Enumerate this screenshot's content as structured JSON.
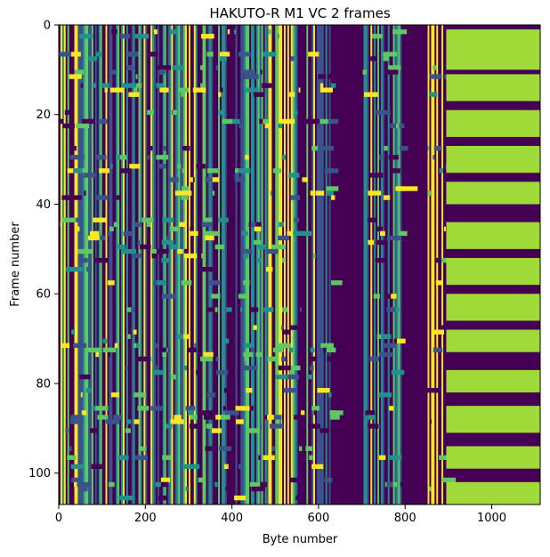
{
  "chart_data": {
    "type": "heatmap",
    "title": "HAKUTO-R M1 VC 2 frames",
    "xlabel": "Byte number",
    "ylabel": "Frame number",
    "xlim": [
      0,
      1112
    ],
    "ylim": [
      107,
      0
    ],
    "x_ticks": [
      "0",
      "200",
      "400",
      "600",
      "800",
      "1000"
    ],
    "y_ticks": [
      "0",
      "20",
      "40",
      "60",
      "80",
      "100"
    ],
    "colormap": "viridis",
    "colors": {
      "low": "#440154",
      "mid_low": "#3b528b",
      "mid": "#21918c",
      "mid_high": "#5ec962",
      "high": "#fde725",
      "fill_region": "#a0da39"
    },
    "regions": {
      "dark_bands_bytes": [
        [
          392,
          404
        ],
        [
          630,
          700
        ],
        [
          800,
          850
        ]
      ],
      "yellow_column_bytes": [
        855,
        890
      ],
      "green_block_bytes": [
        895,
        1112
      ],
      "green_block_frames": [
        [
          1,
          10
        ],
        [
          11,
          17
        ],
        [
          19,
          25
        ],
        [
          27,
          33
        ],
        [
          35,
          40
        ],
        [
          44,
          50
        ],
        [
          52,
          58
        ],
        [
          60,
          66
        ],
        [
          68,
          73
        ],
        [
          77,
          82
        ],
        [
          85,
          91
        ],
        [
          94,
          99
        ],
        [
          102,
          107
        ]
      ]
    }
  }
}
